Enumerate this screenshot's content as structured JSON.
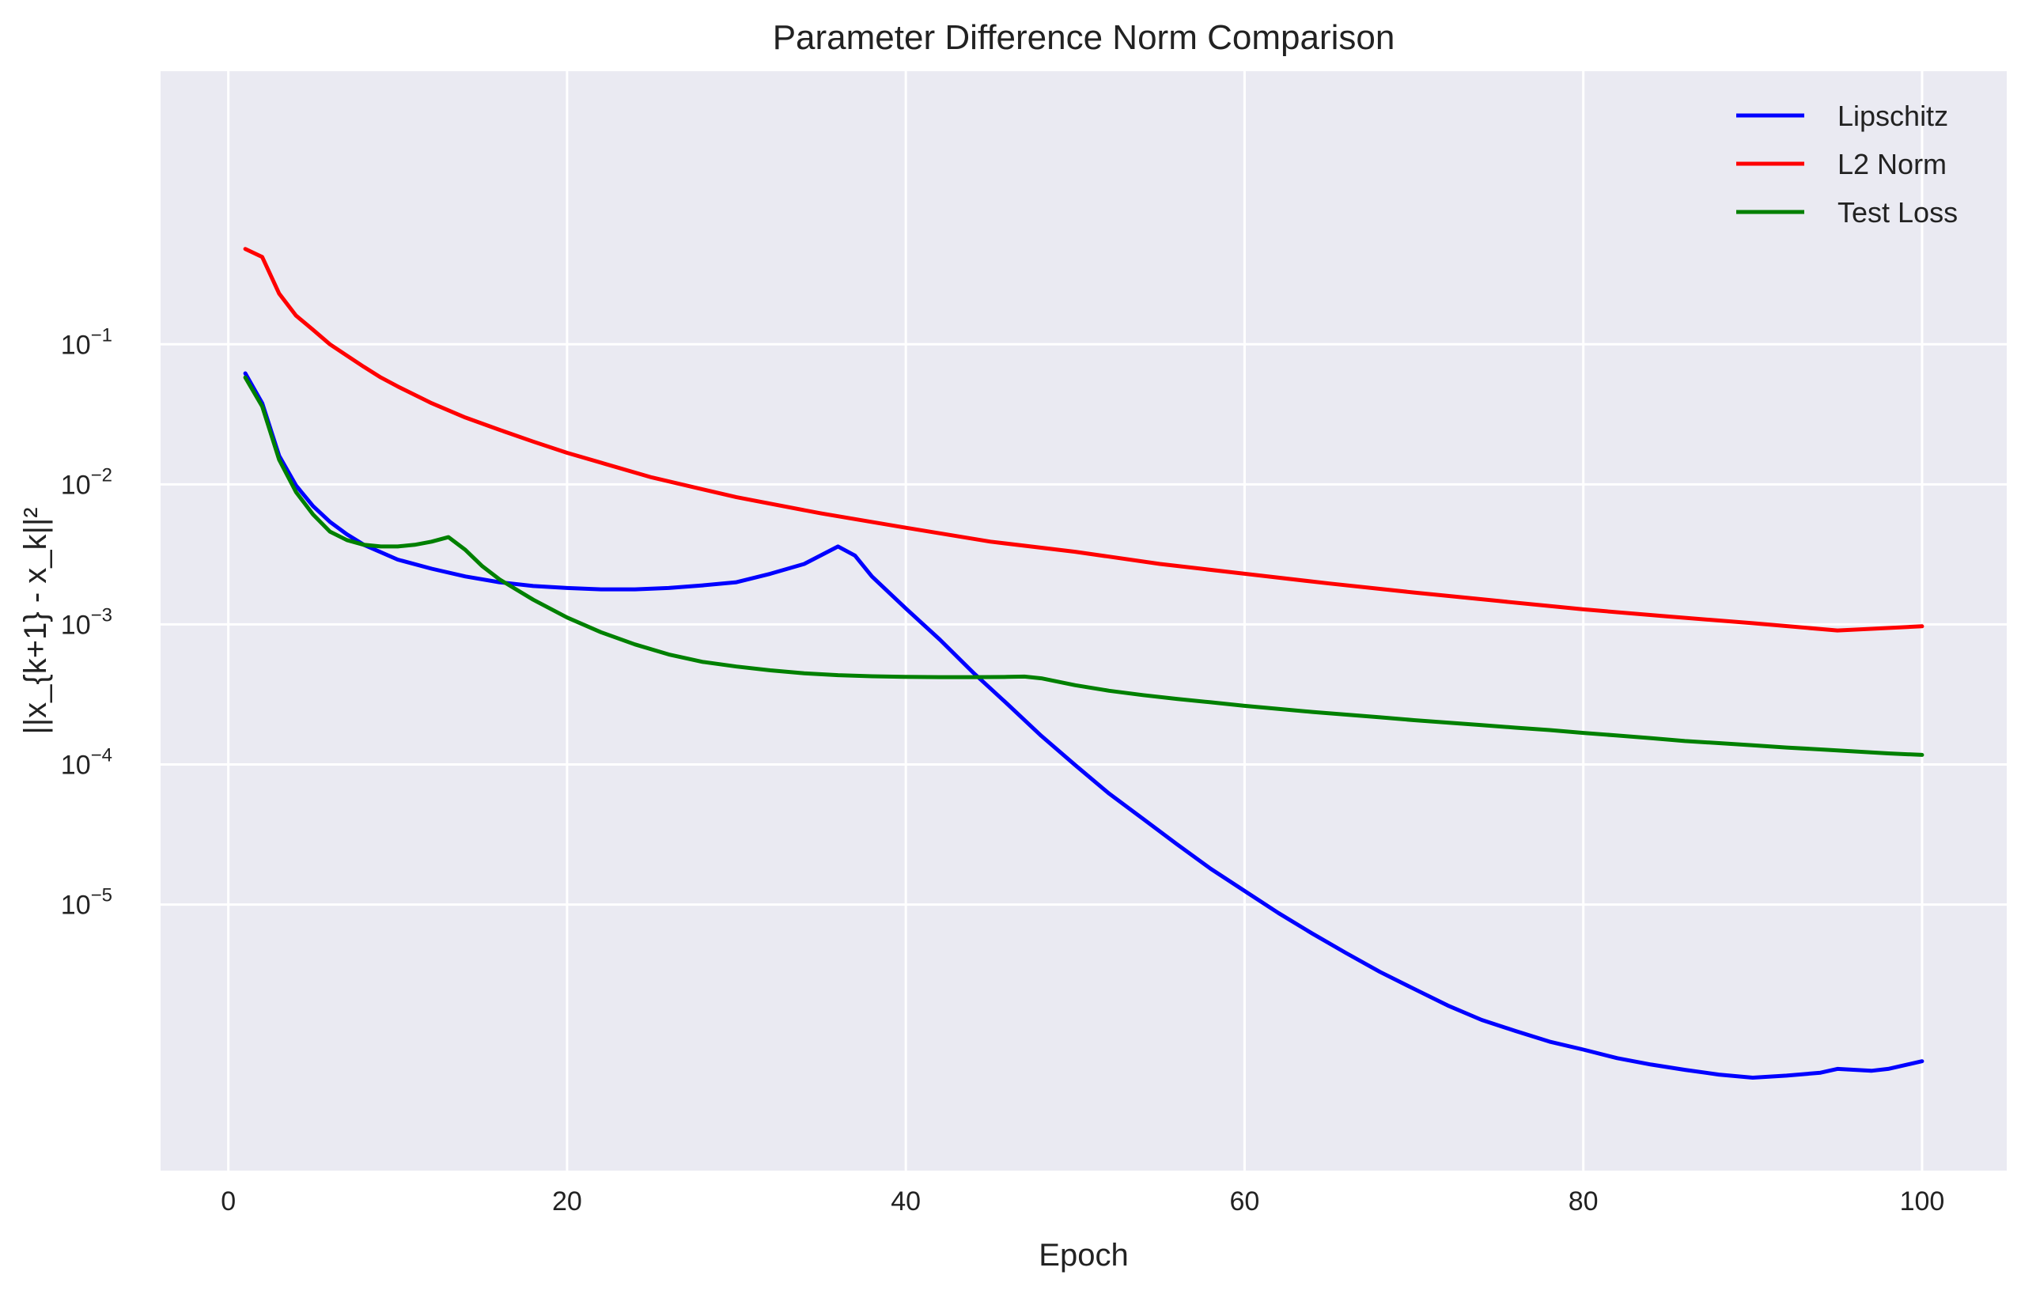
{
  "chart_data": {
    "type": "line",
    "title": "Parameter Difference Norm Comparison",
    "xlabel": "Epoch",
    "ylabel": "||x_{k+1} - x_k||²",
    "xlim": [
      -4,
      105
    ],
    "ylim_log10": [
      -6.9,
      0.95
    ],
    "yscale": "log",
    "grid": true,
    "legend_position": "top-right",
    "background_color": "#EAEAF2",
    "x_ticks": [
      {
        "value": 0,
        "label": "0"
      },
      {
        "value": 20,
        "label": "20"
      },
      {
        "value": 40,
        "label": "40"
      },
      {
        "value": 60,
        "label": "60"
      },
      {
        "value": 80,
        "label": "80"
      },
      {
        "value": 100,
        "label": "100"
      }
    ],
    "y_ticks": [
      {
        "exp": -1,
        "base": "10",
        "sup": "−1"
      },
      {
        "exp": -2,
        "base": "10",
        "sup": "−2"
      },
      {
        "exp": -3,
        "base": "10",
        "sup": "−3"
      },
      {
        "exp": -4,
        "base": "10",
        "sup": "−4"
      },
      {
        "exp": -5,
        "base": "10",
        "sup": "−5"
      }
    ],
    "series": [
      {
        "name": "Lipschitz",
        "color": "#0000FF",
        "points": [
          [
            1,
            0.062
          ],
          [
            2,
            0.038
          ],
          [
            3,
            0.016
          ],
          [
            4,
            0.0098
          ],
          [
            5,
            0.007
          ],
          [
            6,
            0.0054
          ],
          [
            7,
            0.0044
          ],
          [
            8,
            0.0037
          ],
          [
            10,
            0.0029
          ],
          [
            12,
            0.0025
          ],
          [
            14,
            0.0022
          ],
          [
            16,
            0.002
          ],
          [
            18,
            0.00188
          ],
          [
            20,
            0.00182
          ],
          [
            22,
            0.00178
          ],
          [
            24,
            0.00178
          ],
          [
            26,
            0.00182
          ],
          [
            28,
            0.0019
          ],
          [
            30,
            0.002
          ],
          [
            32,
            0.0023
          ],
          [
            34,
            0.0027
          ],
          [
            36,
            0.0036
          ],
          [
            37,
            0.0031
          ],
          [
            38,
            0.0022
          ],
          [
            40,
            0.0013
          ],
          [
            42,
            0.00078
          ],
          [
            44,
            0.00045
          ],
          [
            46,
            0.00027
          ],
          [
            48,
            0.00016
          ],
          [
            50,
            9.9e-05
          ],
          [
            52,
            6.2e-05
          ],
          [
            54,
            4.1e-05
          ],
          [
            56,
            2.7e-05
          ],
          [
            58,
            1.8e-05
          ],
          [
            60,
            1.25e-05
          ],
          [
            62,
            8.7e-06
          ],
          [
            64,
            6.2e-06
          ],
          [
            66,
            4.5e-06
          ],
          [
            68,
            3.3e-06
          ],
          [
            70,
            2.5e-06
          ],
          [
            72,
            1.9e-06
          ],
          [
            74,
            1.5e-06
          ],
          [
            76,
            1.25e-06
          ],
          [
            78,
            1.05e-06
          ],
          [
            80,
            9.2e-07
          ],
          [
            82,
            8e-07
          ],
          [
            84,
            7.2e-07
          ],
          [
            86,
            6.6e-07
          ],
          [
            88,
            6.1e-07
          ],
          [
            90,
            5.8e-07
          ],
          [
            92,
            6e-07
          ],
          [
            94,
            6.3e-07
          ],
          [
            95,
            6.7e-07
          ],
          [
            97,
            6.5e-07
          ],
          [
            98,
            6.7e-07
          ],
          [
            100,
            7.6e-07
          ]
        ]
      },
      {
        "name": "L2 Norm",
        "color": "#FF0000",
        "points": [
          [
            1,
            0.48
          ],
          [
            2,
            0.42
          ],
          [
            3,
            0.23
          ],
          [
            4,
            0.16
          ],
          [
            5,
            0.127
          ],
          [
            6,
            0.1
          ],
          [
            7,
            0.083
          ],
          [
            8,
            0.069
          ],
          [
            9,
            0.058
          ],
          [
            10,
            0.05
          ],
          [
            12,
            0.038
          ],
          [
            14,
            0.03
          ],
          [
            16,
            0.0245
          ],
          [
            18,
            0.0202
          ],
          [
            20,
            0.0168
          ],
          [
            25,
            0.0112
          ],
          [
            30,
            0.0081
          ],
          [
            35,
            0.0062
          ],
          [
            40,
            0.0049
          ],
          [
            45,
            0.0039
          ],
          [
            50,
            0.0033
          ],
          [
            55,
            0.0027
          ],
          [
            60,
            0.0023
          ],
          [
            65,
            0.00196
          ],
          [
            70,
            0.00169
          ],
          [
            75,
            0.00147
          ],
          [
            80,
            0.00128
          ],
          [
            85,
            0.00114
          ],
          [
            90,
            0.00102
          ],
          [
            95,
            0.000905
          ],
          [
            100,
            0.00097
          ]
        ]
      },
      {
        "name": "Test Loss",
        "color": "#008000",
        "points": [
          [
            1,
            0.058
          ],
          [
            2,
            0.036
          ],
          [
            3,
            0.015
          ],
          [
            4,
            0.0088
          ],
          [
            5,
            0.0061
          ],
          [
            6,
            0.0046
          ],
          [
            7,
            0.004
          ],
          [
            8,
            0.0037
          ],
          [
            9,
            0.0036
          ],
          [
            10,
            0.0036
          ],
          [
            11,
            0.0037
          ],
          [
            12,
            0.0039
          ],
          [
            13,
            0.0042
          ],
          [
            14,
            0.0034
          ],
          [
            15,
            0.0026
          ],
          [
            16,
            0.0021
          ],
          [
            18,
            0.0015
          ],
          [
            20,
            0.00112
          ],
          [
            22,
            0.00088
          ],
          [
            24,
            0.00072
          ],
          [
            26,
            0.00061
          ],
          [
            28,
            0.00054
          ],
          [
            30,
            0.0005
          ],
          [
            32,
            0.00047
          ],
          [
            34,
            0.000448
          ],
          [
            36,
            0.000434
          ],
          [
            38,
            0.000426
          ],
          [
            40,
            0.000422
          ],
          [
            42,
            0.00042
          ],
          [
            44,
            0.00042
          ],
          [
            46,
            0.000422
          ],
          [
            47,
            0.000424
          ],
          [
            48,
            0.000412
          ],
          [
            50,
            0.000368
          ],
          [
            52,
            0.000336
          ],
          [
            54,
            0.000313
          ],
          [
            56,
            0.000294
          ],
          [
            58,
            0.000278
          ],
          [
            60,
            0.000262
          ],
          [
            62,
            0.000249
          ],
          [
            64,
            0.000237
          ],
          [
            66,
            0.000227
          ],
          [
            68,
            0.000217
          ],
          [
            70,
            0.000207
          ],
          [
            72,
            0.000199
          ],
          [
            74,
            0.000191
          ],
          [
            76,
            0.000183
          ],
          [
            78,
            0.000176
          ],
          [
            80,
            0.000168
          ],
          [
            82,
            0.000161
          ],
          [
            84,
            0.000154
          ],
          [
            86,
            0.000147
          ],
          [
            88,
            0.000142
          ],
          [
            90,
            0.000137
          ],
          [
            92,
            0.000132
          ],
          [
            94,
            0.000128
          ],
          [
            96,
            0.000124
          ],
          [
            98,
            0.00012
          ],
          [
            100,
            0.000117
          ]
        ]
      }
    ]
  }
}
